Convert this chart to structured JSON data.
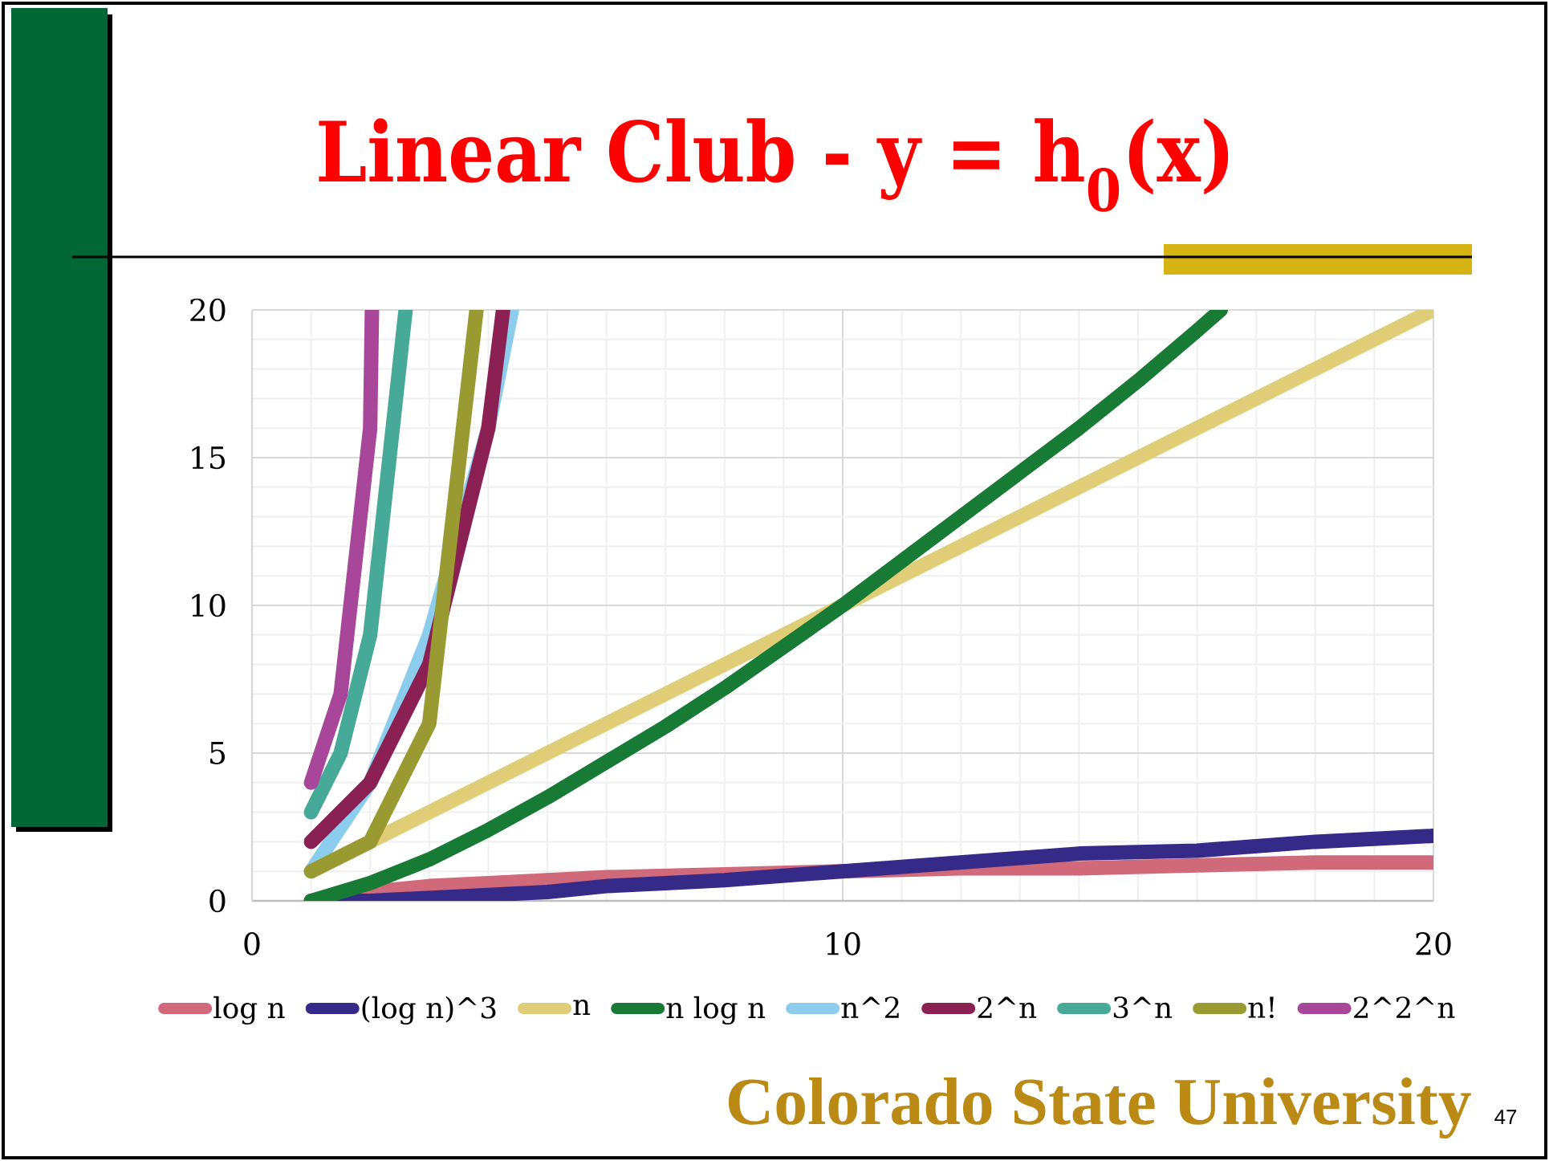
{
  "chart_data": {
    "type": "line",
    "title": "Linear Club - y = h$_{0}$(x)",
    "xlim": [
      0,
      20
    ],
    "xticks": [
      0,
      10,
      20
    ],
    "ylim": [
      0,
      20
    ],
    "yticks": [
      0,
      5,
      10,
      15,
      20
    ],
    "grid": true,
    "legend": "bottom",
    "annotations": [
      "Colorado State University",
      "47"
    ],
    "series": [
      {
        "name": "log n",
        "color": "#d0697a",
        "x": [
          1,
          2,
          3,
          4,
          5,
          6,
          8,
          10,
          12,
          14,
          16,
          18,
          20
        ],
        "values": [
          0,
          0.3,
          0.5,
          0.6,
          0.7,
          0.8,
          0.9,
          1.0,
          1.1,
          1.1,
          1.2,
          1.3,
          1.3
        ]
      },
      {
        "name": "(log n)^3",
        "color": "#352a87",
        "x": [
          1,
          2,
          3,
          4,
          5,
          6,
          7,
          8,
          10,
          12,
          14,
          16,
          18,
          20
        ],
        "values": [
          0,
          0,
          0.1,
          0.2,
          0.3,
          0.5,
          0.6,
          0.7,
          1.0,
          1.3,
          1.6,
          1.7,
          2.0,
          2.2
        ]
      },
      {
        "name": "n",
        "color": "#dfcd78",
        "x": [
          1,
          10,
          20
        ],
        "values": [
          1,
          10,
          20
        ]
      },
      {
        "name": "n log n",
        "color": "#177a35",
        "x": [
          1,
          2,
          3,
          4,
          5,
          6,
          7,
          8,
          9,
          10,
          11,
          12,
          13,
          14,
          15,
          16,
          16.4
        ],
        "values": [
          0,
          0.6,
          1.4,
          2.4,
          3.5,
          4.7,
          5.9,
          7.2,
          8.6,
          10,
          11.5,
          13.0,
          14.5,
          16.0,
          17.6,
          19.3,
          20
        ]
      },
      {
        "name": "n^2",
        "color": "#8ccdee",
        "x": [
          1,
          2,
          3,
          4,
          4.4
        ],
        "values": [
          1,
          4,
          9,
          16,
          20
        ]
      },
      {
        "name": "2^n",
        "color": "#8a2152",
        "x": [
          1,
          2,
          3,
          4,
          4.25
        ],
        "values": [
          2,
          4,
          8,
          16,
          20
        ]
      },
      {
        "name": "3^n",
        "color": "#47aa98",
        "x": [
          1,
          1.5,
          2,
          2.6
        ],
        "values": [
          3,
          5,
          9,
          20
        ]
      },
      {
        "name": "n!",
        "color": "#9a9a33",
        "x": [
          1,
          2,
          3,
          3.8
        ],
        "values": [
          1,
          2,
          6,
          20
        ]
      },
      {
        "name": "2^2^n",
        "color": "#a8479a",
        "x": [
          1,
          1.5,
          2,
          2.03
        ],
        "values": [
          4,
          7,
          16,
          20
        ]
      }
    ]
  }
}
